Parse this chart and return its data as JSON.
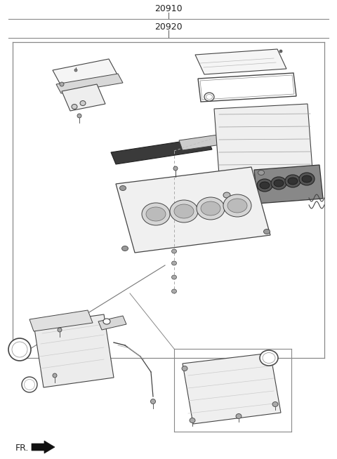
{
  "title1": "20910",
  "title2": "20920",
  "bg_color": "#ffffff",
  "line_color": "#444444",
  "text_color": "#222222",
  "fr_label": "FR.",
  "fig_width": 4.8,
  "fig_height": 6.54,
  "dpi": 100
}
